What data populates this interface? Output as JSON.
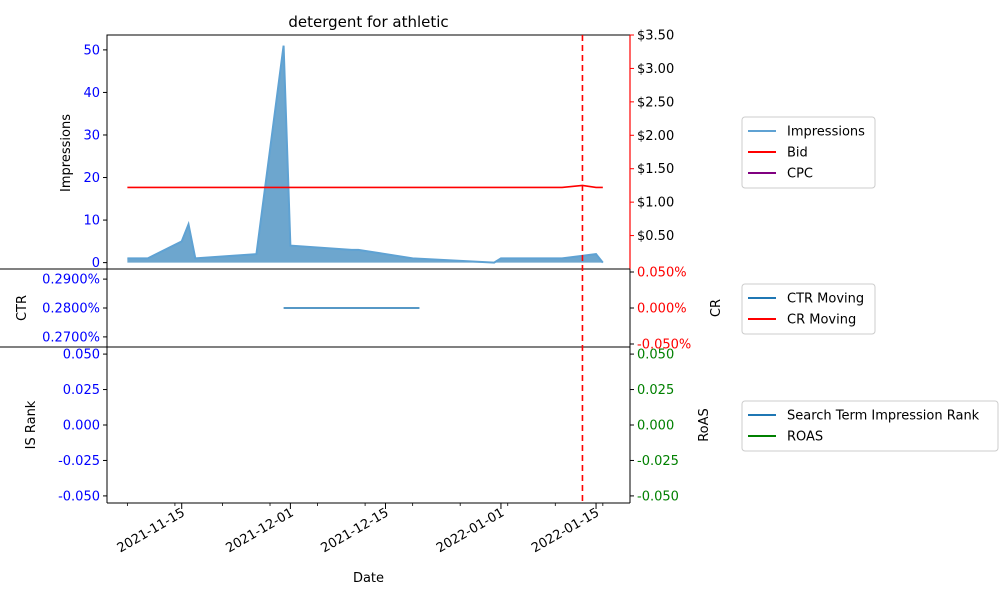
{
  "chart_data": [
    {
      "type": "area",
      "title": "detergent for athletic",
      "ylabel": "Impressions",
      "ylim": [
        -1.5,
        53.5
      ],
      "yticks": [
        0,
        10,
        20,
        30,
        40,
        50
      ],
      "y2lim": [
        0,
        3.5
      ],
      "y2ticks": [
        "$0.50",
        "$1.00",
        "$1.50",
        "$2.00",
        "$2.50",
        "$3.00",
        "$3.50"
      ],
      "y2tick_values": [
        0.5,
        1.0,
        1.5,
        2.0,
        2.5,
        3.0,
        3.5
      ],
      "series": [
        {
          "name": "Impressions",
          "color": "#5fa2d3",
          "fill": "#1f77b4",
          "x": [
            "2021-11-07",
            "2021-11-10",
            "2021-11-15",
            "2021-11-16",
            "2021-11-17",
            "2021-11-26",
            "2021-11-30",
            "2021-12-01",
            "2021-12-10",
            "2021-12-11",
            "2021-12-19",
            "2021-12-31",
            "2022-01-01",
            "2022-01-10",
            "2022-01-15",
            "2022-01-16"
          ],
          "values": [
            1,
            1,
            5,
            9,
            1,
            2,
            51,
            4,
            3,
            3,
            1,
            0,
            1,
            1,
            2,
            0
          ]
        },
        {
          "name": "Bid",
          "color": "#ff0000",
          "axis": "right",
          "x": [
            "2021-11-07",
            "2022-01-10",
            "2022-01-13",
            "2022-01-15",
            "2022-01-16"
          ],
          "values": [
            1.22,
            1.22,
            1.25,
            1.22,
            1.22
          ]
        },
        {
          "name": "CPC",
          "color": "#800080",
          "axis": "right",
          "x": [],
          "values": []
        }
      ],
      "vline": {
        "x": "2022-01-13",
        "color": "#ff0000",
        "style": "dashed"
      },
      "legend": "right"
    },
    {
      "type": "line",
      "ylabel": "CTR",
      "ylabel2": "CR",
      "ylim": [
        0.2665,
        0.2935
      ],
      "yticks": [
        "0.2700%",
        "0.2800%",
        "0.2900%"
      ],
      "ytick_values": [
        0.27,
        0.28,
        0.29
      ],
      "y2lim": [
        -0.05,
        0.05
      ],
      "y2ticks": [
        "-0.050%",
        "0.000%",
        "0.050%"
      ],
      "y2tick_values": [
        -0.05,
        0.0,
        0.05
      ],
      "series": [
        {
          "name": "CTR Moving",
          "color": "#1f77b4",
          "x": [
            "2021-11-30",
            "2021-12-20"
          ],
          "values": [
            0.28,
            0.28
          ]
        },
        {
          "name": "CR Moving",
          "color": "#ff0000",
          "axis": "right",
          "x": [],
          "values": []
        }
      ],
      "legend": "right"
    },
    {
      "type": "line",
      "ylabel": "IS Rank",
      "ylabel2": "RoAS",
      "ylim": [
        -0.055,
        0.055
      ],
      "yticks": [
        "-0.050",
        "-0.025",
        "0.000",
        "0.025",
        "0.050"
      ],
      "ytick_values": [
        -0.05,
        -0.025,
        0.0,
        0.025,
        0.05
      ],
      "y2ticks": [
        "-0.050",
        "-0.025",
        "0.000",
        "0.025",
        "0.050"
      ],
      "series": [
        {
          "name": "Search Term Impression Rank",
          "color": "#1f77b4",
          "x": [],
          "values": []
        },
        {
          "name": "ROAS",
          "color": "#008000",
          "axis": "right",
          "x": [],
          "values": []
        }
      ],
      "xlabel": "Date",
      "xlim": [
        "2021-11-04",
        "2022-01-20"
      ],
      "xticks": [
        "2021-11-15",
        "2021-12-01",
        "2021-12-15",
        "2022-01-01",
        "2022-01-15"
      ],
      "legend": "right"
    }
  ]
}
